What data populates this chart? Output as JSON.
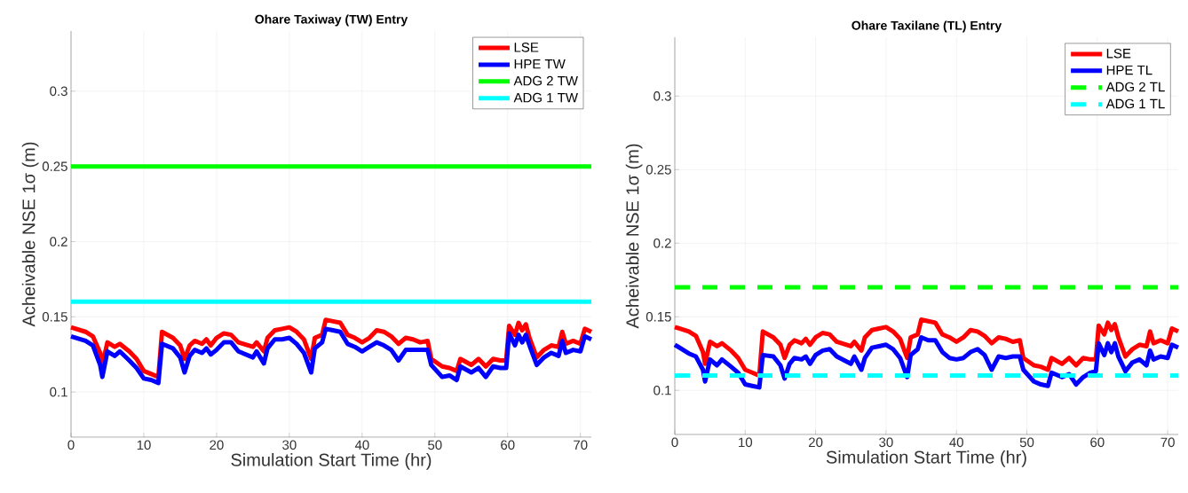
{
  "chart_data": [
    {
      "type": "line",
      "title": "Ohare Taxiway (TW) Entry",
      "xlabel": "Simulation Start Time (hr)",
      "ylabel": "Acheivable NSE 1σ (m)",
      "xlim": [
        0,
        71.5
      ],
      "ylim": [
        0.07,
        0.34
      ],
      "xticks": [
        0,
        10,
        20,
        30,
        40,
        50,
        60,
        70
      ],
      "yticks": [
        0.1,
        0.15,
        0.2,
        0.25,
        0.3
      ],
      "grid": true,
      "legend": "top right",
      "marker": "none",
      "x": [
        0,
        2,
        3,
        4,
        4.3,
        5,
        6,
        6.7,
        8,
        9,
        10,
        11,
        12,
        12.5,
        14,
        15,
        15.6,
        16.3,
        17,
        18,
        18.6,
        19.2,
        20,
        21,
        22,
        23,
        25,
        25.5,
        26.5,
        27,
        28,
        29,
        30,
        31,
        32,
        33,
        33.5,
        34.5,
        35,
        36,
        37,
        38,
        39,
        40,
        41,
        42,
        43,
        44,
        45,
        46,
        47,
        48,
        49,
        49.5,
        51,
        52,
        53,
        53.5,
        55,
        56,
        57,
        58,
        59,
        59.8,
        60.2,
        61,
        61.5,
        62,
        62.5,
        63,
        64,
        65,
        66,
        67,
        67.5,
        68,
        69,
        70,
        70.6,
        71.5
      ],
      "series": [
        {
          "name": "LSE",
          "color": "#ff0000",
          "line_style": "solid",
          "values": [
            0.143,
            0.14,
            0.137,
            0.126,
            0.118,
            0.133,
            0.13,
            0.132,
            0.127,
            0.122,
            0.114,
            0.112,
            0.11,
            0.14,
            0.136,
            0.131,
            0.122,
            0.131,
            0.134,
            0.132,
            0.135,
            0.131,
            0.136,
            0.139,
            0.138,
            0.133,
            0.13,
            0.133,
            0.127,
            0.136,
            0.141,
            0.142,
            0.143,
            0.14,
            0.135,
            0.122,
            0.136,
            0.138,
            0.148,
            0.147,
            0.146,
            0.138,
            0.136,
            0.133,
            0.136,
            0.141,
            0.14,
            0.137,
            0.132,
            0.136,
            0.135,
            0.133,
            0.134,
            0.122,
            0.117,
            0.116,
            0.114,
            0.122,
            0.118,
            0.122,
            0.117,
            0.122,
            0.121,
            0.121,
            0.144,
            0.138,
            0.146,
            0.141,
            0.145,
            0.136,
            0.123,
            0.128,
            0.131,
            0.13,
            0.14,
            0.132,
            0.134,
            0.132,
            0.142,
            0.14
          ]
        },
        {
          "name": "HPE TW",
          "color": "#0000ff",
          "line_style": "solid",
          "values": [
            0.137,
            0.134,
            0.131,
            0.118,
            0.11,
            0.127,
            0.124,
            0.127,
            0.121,
            0.116,
            0.109,
            0.108,
            0.106,
            0.132,
            0.129,
            0.123,
            0.113,
            0.124,
            0.128,
            0.126,
            0.129,
            0.125,
            0.128,
            0.133,
            0.133,
            0.127,
            0.123,
            0.127,
            0.119,
            0.129,
            0.135,
            0.135,
            0.136,
            0.132,
            0.126,
            0.113,
            0.129,
            0.133,
            0.142,
            0.141,
            0.14,
            0.132,
            0.13,
            0.127,
            0.13,
            0.133,
            0.131,
            0.128,
            0.121,
            0.128,
            0.128,
            0.128,
            0.128,
            0.118,
            0.11,
            0.111,
            0.108,
            0.117,
            0.113,
            0.116,
            0.11,
            0.117,
            0.116,
            0.116,
            0.139,
            0.131,
            0.138,
            0.133,
            0.138,
            0.131,
            0.118,
            0.123,
            0.126,
            0.124,
            0.134,
            0.126,
            0.128,
            0.127,
            0.137,
            0.135
          ]
        },
        {
          "name": "ADG 2 TW",
          "color": "#00ff00",
          "line_style": "solid",
          "values": [
            0.25,
            0.25,
            0.25,
            0.25,
            0.25,
            0.25,
            0.25,
            0.25,
            0.25,
            0.25,
            0.25,
            0.25,
            0.25,
            0.25,
            0.25,
            0.25,
            0.25,
            0.25,
            0.25,
            0.25,
            0.25,
            0.25,
            0.25,
            0.25,
            0.25,
            0.25,
            0.25,
            0.25,
            0.25,
            0.25,
            0.25,
            0.25,
            0.25,
            0.25,
            0.25,
            0.25,
            0.25,
            0.25,
            0.25,
            0.25,
            0.25,
            0.25,
            0.25,
            0.25,
            0.25,
            0.25,
            0.25,
            0.25,
            0.25,
            0.25,
            0.25,
            0.25,
            0.25,
            0.25,
            0.25,
            0.25,
            0.25,
            0.25,
            0.25,
            0.25,
            0.25,
            0.25,
            0.25,
            0.25,
            0.25,
            0.25,
            0.25,
            0.25,
            0.25,
            0.25,
            0.25,
            0.25,
            0.25,
            0.25,
            0.25,
            0.25,
            0.25,
            0.25,
            0.25,
            0.25
          ]
        },
        {
          "name": "ADG 1 TW",
          "color": "#00ffff",
          "line_style": "solid",
          "values": [
            0.16,
            0.16,
            0.16,
            0.16,
            0.16,
            0.16,
            0.16,
            0.16,
            0.16,
            0.16,
            0.16,
            0.16,
            0.16,
            0.16,
            0.16,
            0.16,
            0.16,
            0.16,
            0.16,
            0.16,
            0.16,
            0.16,
            0.16,
            0.16,
            0.16,
            0.16,
            0.16,
            0.16,
            0.16,
            0.16,
            0.16,
            0.16,
            0.16,
            0.16,
            0.16,
            0.16,
            0.16,
            0.16,
            0.16,
            0.16,
            0.16,
            0.16,
            0.16,
            0.16,
            0.16,
            0.16,
            0.16,
            0.16,
            0.16,
            0.16,
            0.16,
            0.16,
            0.16,
            0.16,
            0.16,
            0.16,
            0.16,
            0.16,
            0.16,
            0.16,
            0.16,
            0.16,
            0.16,
            0.16,
            0.16,
            0.16,
            0.16,
            0.16,
            0.16,
            0.16,
            0.16,
            0.16,
            0.16,
            0.16,
            0.16,
            0.16,
            0.16,
            0.16,
            0.16,
            0.16
          ]
        }
      ]
    },
    {
      "type": "line",
      "title": "Ohare Taxilane (TL) Entry",
      "xlabel": "Simulation Start Time (hr)",
      "ylabel": "Acheivable NSE 1σ (m)",
      "xlim": [
        0,
        71.5
      ],
      "ylim": [
        0.07,
        0.34
      ],
      "xticks": [
        0,
        10,
        20,
        30,
        40,
        50,
        60,
        70
      ],
      "yticks": [
        0.1,
        0.15,
        0.2,
        0.25,
        0.3
      ],
      "grid": true,
      "legend": "top right",
      "marker": "none",
      "x": [
        0,
        2,
        3,
        4,
        4.3,
        5,
        6,
        6.7,
        8,
        9,
        10,
        11,
        12,
        12.5,
        14,
        15,
        15.6,
        16.3,
        17,
        18,
        18.6,
        19.2,
        20,
        21,
        22,
        23,
        25,
        25.5,
        26.5,
        27,
        28,
        29,
        30,
        31,
        32,
        33,
        33.5,
        34.5,
        35,
        36,
        37,
        38,
        39,
        40,
        41,
        42,
        43,
        44,
        45,
        46,
        47,
        48,
        49,
        49.5,
        51,
        52,
        53,
        53.5,
        55,
        56,
        57,
        58,
        59,
        59.8,
        60.2,
        61,
        61.5,
        62,
        62.5,
        63,
        64,
        65,
        66,
        67,
        67.5,
        68,
        69,
        70,
        70.6,
        71.5
      ],
      "series": [
        {
          "name": "LSE",
          "color": "#ff0000",
          "line_style": "solid",
          "values": [
            0.143,
            0.14,
            0.137,
            0.126,
            0.118,
            0.133,
            0.13,
            0.132,
            0.127,
            0.122,
            0.114,
            0.112,
            0.11,
            0.14,
            0.136,
            0.131,
            0.122,
            0.131,
            0.134,
            0.132,
            0.135,
            0.131,
            0.136,
            0.139,
            0.138,
            0.133,
            0.13,
            0.133,
            0.127,
            0.136,
            0.141,
            0.142,
            0.143,
            0.14,
            0.135,
            0.122,
            0.136,
            0.138,
            0.148,
            0.147,
            0.146,
            0.138,
            0.136,
            0.133,
            0.136,
            0.141,
            0.14,
            0.137,
            0.132,
            0.136,
            0.135,
            0.133,
            0.134,
            0.122,
            0.117,
            0.116,
            0.114,
            0.122,
            0.118,
            0.122,
            0.117,
            0.122,
            0.121,
            0.121,
            0.144,
            0.138,
            0.146,
            0.141,
            0.145,
            0.136,
            0.123,
            0.128,
            0.131,
            0.13,
            0.14,
            0.132,
            0.134,
            0.132,
            0.142,
            0.14
          ]
        },
        {
          "name": "HPE TL",
          "color": "#0000ff",
          "line_style": "solid",
          "values": [
            0.131,
            0.125,
            0.123,
            0.114,
            0.106,
            0.121,
            0.117,
            0.121,
            0.116,
            0.112,
            0.104,
            0.103,
            0.102,
            0.124,
            0.123,
            0.117,
            0.108,
            0.118,
            0.122,
            0.121,
            0.123,
            0.118,
            0.124,
            0.127,
            0.128,
            0.123,
            0.118,
            0.123,
            0.114,
            0.122,
            0.129,
            0.13,
            0.131,
            0.128,
            0.122,
            0.109,
            0.124,
            0.128,
            0.136,
            0.134,
            0.134,
            0.126,
            0.122,
            0.121,
            0.122,
            0.126,
            0.128,
            0.124,
            0.114,
            0.123,
            0.122,
            0.123,
            0.123,
            0.114,
            0.106,
            0.104,
            0.103,
            0.112,
            0.109,
            0.111,
            0.104,
            0.109,
            0.112,
            0.113,
            0.132,
            0.124,
            0.132,
            0.126,
            0.132,
            0.123,
            0.113,
            0.119,
            0.121,
            0.117,
            0.127,
            0.121,
            0.123,
            0.122,
            0.131,
            0.129
          ]
        },
        {
          "name": "ADG 2 TL",
          "color": "#00ff00",
          "line_style": "dashed",
          "values": [
            0.17,
            0.17,
            0.17,
            0.17,
            0.17,
            0.17,
            0.17,
            0.17,
            0.17,
            0.17,
            0.17,
            0.17,
            0.17,
            0.17,
            0.17,
            0.17,
            0.17,
            0.17,
            0.17,
            0.17,
            0.17,
            0.17,
            0.17,
            0.17,
            0.17,
            0.17,
            0.17,
            0.17,
            0.17,
            0.17,
            0.17,
            0.17,
            0.17,
            0.17,
            0.17,
            0.17,
            0.17,
            0.17,
            0.17,
            0.17,
            0.17,
            0.17,
            0.17,
            0.17,
            0.17,
            0.17,
            0.17,
            0.17,
            0.17,
            0.17,
            0.17,
            0.17,
            0.17,
            0.17,
            0.17,
            0.17,
            0.17,
            0.17,
            0.17,
            0.17,
            0.17,
            0.17,
            0.17,
            0.17,
            0.17,
            0.17,
            0.17,
            0.17,
            0.17,
            0.17,
            0.17,
            0.17,
            0.17,
            0.17,
            0.17,
            0.17,
            0.17,
            0.17,
            0.17,
            0.17
          ]
        },
        {
          "name": "ADG 1 TL",
          "color": "#00ffff",
          "line_style": "dashed",
          "values": [
            0.11,
            0.11,
            0.11,
            0.11,
            0.11,
            0.11,
            0.11,
            0.11,
            0.11,
            0.11,
            0.11,
            0.11,
            0.11,
            0.11,
            0.11,
            0.11,
            0.11,
            0.11,
            0.11,
            0.11,
            0.11,
            0.11,
            0.11,
            0.11,
            0.11,
            0.11,
            0.11,
            0.11,
            0.11,
            0.11,
            0.11,
            0.11,
            0.11,
            0.11,
            0.11,
            0.11,
            0.11,
            0.11,
            0.11,
            0.11,
            0.11,
            0.11,
            0.11,
            0.11,
            0.11,
            0.11,
            0.11,
            0.11,
            0.11,
            0.11,
            0.11,
            0.11,
            0.11,
            0.11,
            0.11,
            0.11,
            0.11,
            0.11,
            0.11,
            0.11,
            0.11,
            0.11,
            0.11,
            0.11,
            0.11,
            0.11,
            0.11,
            0.11,
            0.11,
            0.11,
            0.11,
            0.11,
            0.11,
            0.11,
            0.11,
            0.11,
            0.11,
            0.11,
            0.11,
            0.11
          ]
        }
      ]
    }
  ]
}
